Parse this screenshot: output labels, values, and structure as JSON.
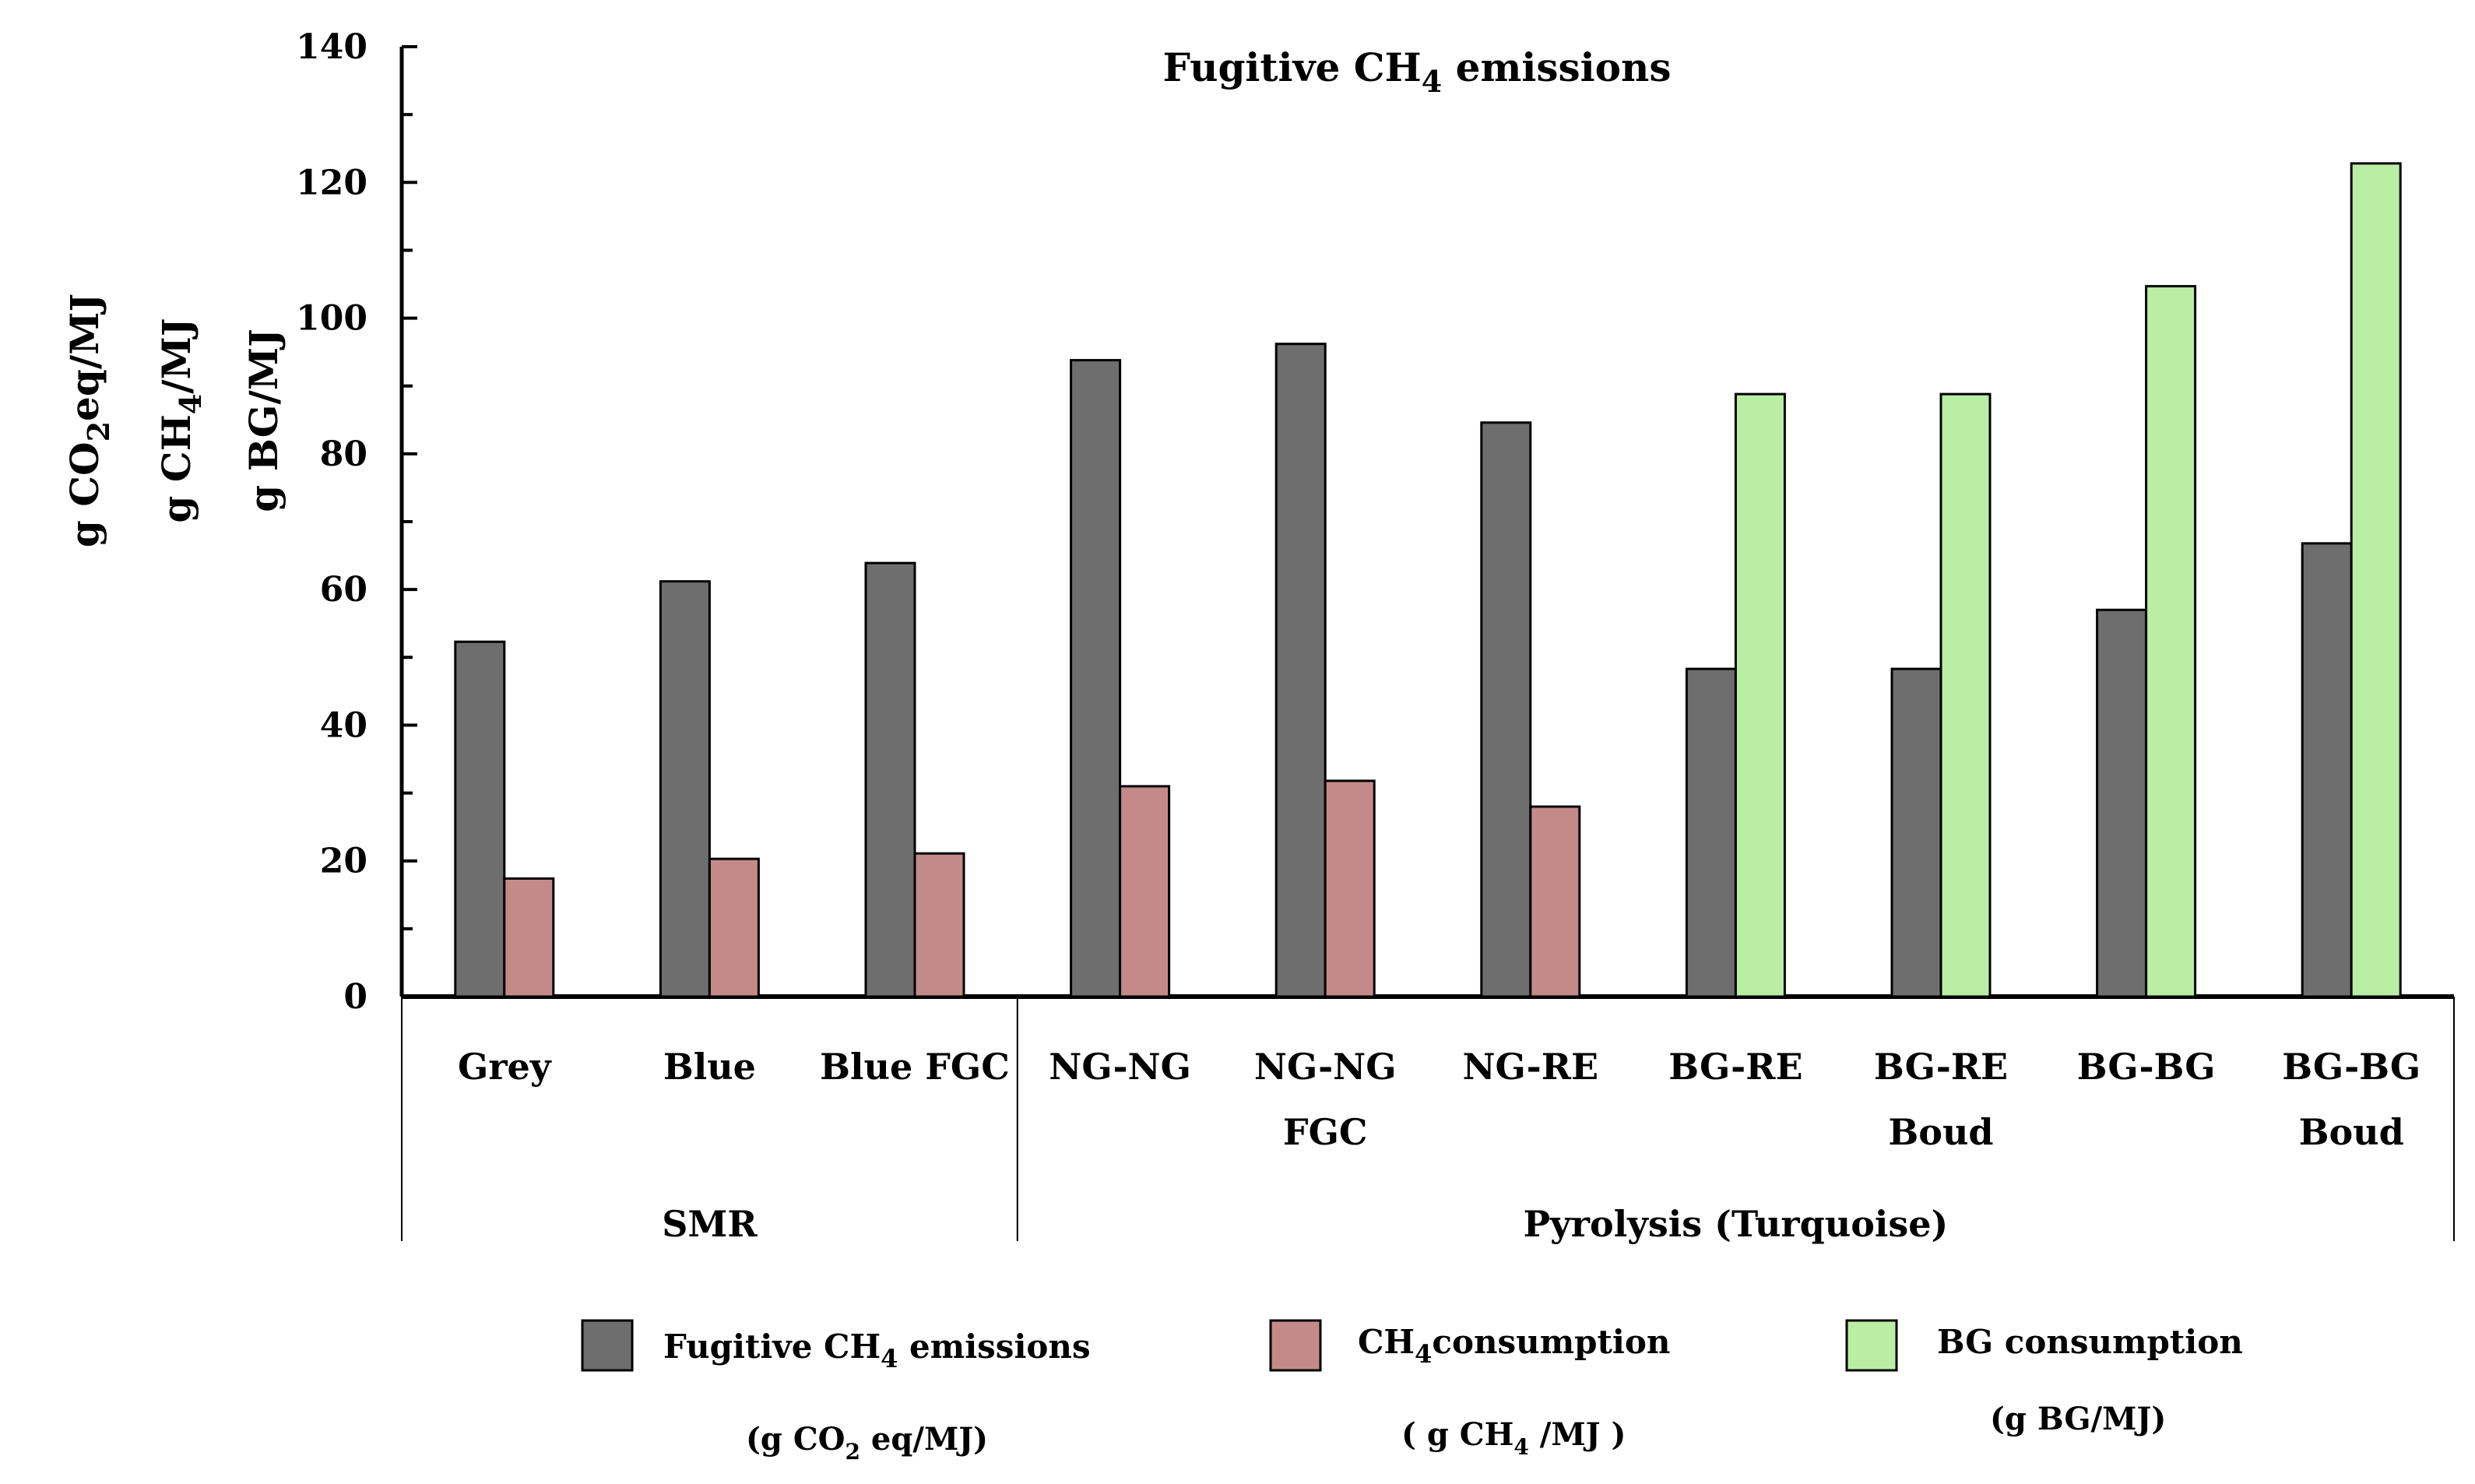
{
  "chart_data": {
    "type": "bar",
    "title_parts": [
      "Fugitive CH",
      "4",
      " emissions"
    ],
    "ylim": [
      0,
      140
    ],
    "yticks": [
      0,
      20,
      40,
      60,
      80,
      100,
      120,
      140
    ],
    "ylabels": [
      {
        "parts": [
          "g CO",
          "2",
          "eq/MJ"
        ]
      },
      {
        "parts": [
          "g CH",
          "4",
          "/MJ"
        ]
      },
      {
        "parts": [
          "g BG/MJ"
        ]
      }
    ],
    "categories": [
      {
        "line1": "Grey",
        "line2": ""
      },
      {
        "line1": "Blue",
        "line2": ""
      },
      {
        "line1": "Blue FGC",
        "line2": ""
      },
      {
        "line1": "NG-NG",
        "line2": ""
      },
      {
        "line1": "NG-NG",
        "line2": "FGC"
      },
      {
        "line1": "NG-RE",
        "line2": ""
      },
      {
        "line1": "BG-RE",
        "line2": ""
      },
      {
        "line1": "BG-RE",
        "line2": "Boud"
      },
      {
        "line1": "BG-BG",
        "line2": ""
      },
      {
        "line1": "BG-BG",
        "line2": "Boud"
      }
    ],
    "groups": [
      {
        "label": "SMR",
        "start": 0,
        "end": 2
      },
      {
        "label": "Pyrolysis (Turquoise)",
        "start": 3,
        "end": 9
      }
    ],
    "series": [
      {
        "name": "Fugitive CH4 emissions",
        "color": "#6e6e6e",
        "values": [
          52.3,
          61.2,
          63.9,
          93.8,
          96.2,
          84.6,
          48.3,
          48.3,
          57,
          66.8
        ]
      },
      {
        "name": "CH4 consumption",
        "color": "#c48a8a",
        "values": [
          17.4,
          20.3,
          21.1,
          31,
          31.8,
          28,
          null,
          null,
          null,
          null
        ]
      },
      {
        "name": "BG consumption",
        "color": "#b9eea4",
        "values": [
          null,
          null,
          null,
          null,
          null,
          null,
          88.8,
          88.8,
          104.7,
          122.8
        ]
      }
    ],
    "legend": [
      {
        "parts": [
          "Fugitive CH",
          "4",
          " emissions"
        ],
        "sub": [
          "(g CO",
          "2",
          " eq/MJ)"
        ],
        "color": "#6e6e6e"
      },
      {
        "parts": [
          "CH",
          "4",
          "consumption"
        ],
        "sub": [
          "( g CH",
          "4",
          " /MJ )"
        ],
        "color": "#c48a8a"
      },
      {
        "parts": [
          "BG consumption"
        ],
        "sub": [
          "(g BG/MJ)"
        ],
        "color": "#b9eea4"
      }
    ]
  }
}
